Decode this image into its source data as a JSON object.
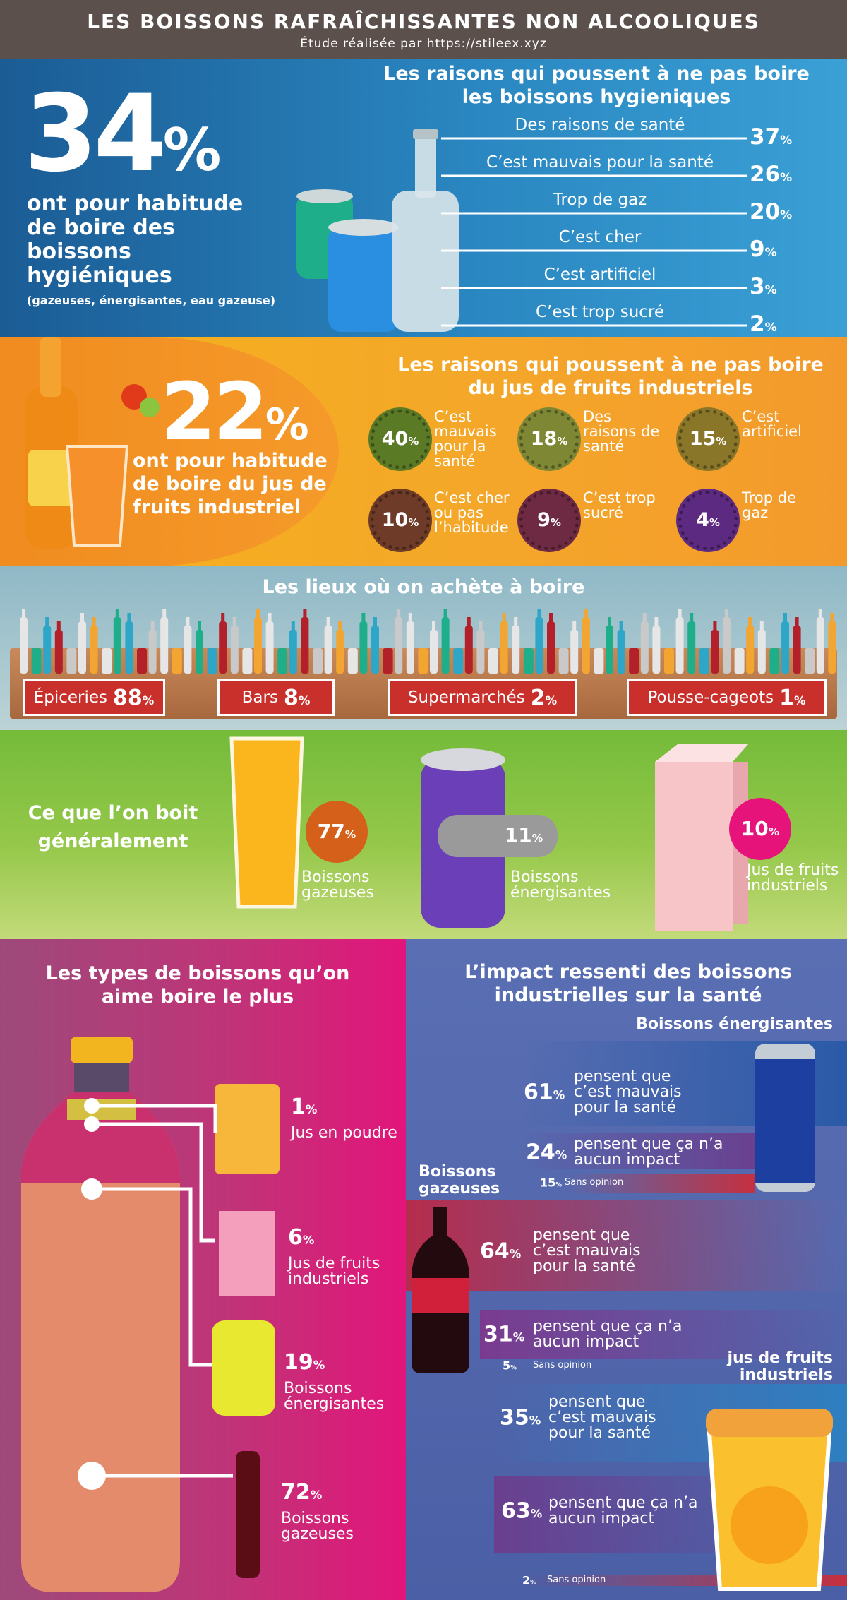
{
  "header": {
    "title": "LES BOISSONS RAFRAÎCHISSANTES NON ALCOOLIQUES",
    "subtitle": "Étude réalisée par https://stileex.xyz"
  },
  "unit": "%",
  "hygienic": {
    "value": 34,
    "text": "ont pour habitude de boire des boissons hygiéniques",
    "note": "(gazeuses, énergisantes, eau gazeuse)",
    "reasons_title": "Les raisons qui poussent à ne pas boire les boissons hygieniques",
    "reasons": [
      {
        "label": "Des raisons de santé",
        "value": 37
      },
      {
        "label": "C’est mauvais pour la santé",
        "value": 26
      },
      {
        "label": "Trop de gaz",
        "value": 20
      },
      {
        "label": "C’est cher",
        "value": 9
      },
      {
        "label": "C’est artificiel",
        "value": 3
      },
      {
        "label": "C’est trop sucré",
        "value": 2
      }
    ]
  },
  "juice": {
    "value": 22,
    "text": "ont pour habitude de boire du jus de fruits industriel",
    "reasons_title": "Les raisons qui poussent à ne pas boire du jus de fruits industriels",
    "reasons": [
      {
        "value": 40,
        "label": "C’est mauvais pour la santé"
      },
      {
        "value": 18,
        "label": "Des raisons de santé"
      },
      {
        "value": 15,
        "label": "C’est artificiel"
      },
      {
        "value": 10,
        "label": "C’est cher ou pas l’habitude"
      },
      {
        "value": 9,
        "label": "C’est trop sucré"
      },
      {
        "value": 4,
        "label": "Trop de gaz"
      }
    ]
  },
  "places": {
    "title": "Les lieux où on achète à boire",
    "items": [
      {
        "label": "Épiceries",
        "value": 88
      },
      {
        "label": "Bars",
        "value": 8
      },
      {
        "label": "Supermarchés",
        "value": 2
      },
      {
        "label": "Pousse-cageots",
        "value": 1
      }
    ]
  },
  "drinks": {
    "title": "Ce que l’on boit généralement",
    "items": [
      {
        "value": 77,
        "label": "Boissons gazeuses"
      },
      {
        "value": 11,
        "label": "Boissons énergisantes"
      },
      {
        "value": 10,
        "label": "Jus de fruits industriels"
      }
    ]
  },
  "types": {
    "title": "Les types de boissons qu’on aime boire le plus",
    "items": [
      {
        "value": 1,
        "label": "Jus en poudre"
      },
      {
        "value": 6,
        "label": "Jus de fruits industriels"
      },
      {
        "value": 19,
        "label": "Boissons énergisantes"
      },
      {
        "value": 72,
        "label": "Boissons gazeuses"
      }
    ]
  },
  "impact": {
    "title": "L’impact ressenti des boissons industrielles sur la santé",
    "groups": [
      {
        "name": "Boissons énergisantes",
        "rows": [
          {
            "value": 61,
            "label": "pensent que c’est mauvais pour la santé"
          },
          {
            "value": 24,
            "label": "pensent que ça n’a aucun impact"
          },
          {
            "value": 15,
            "label": "Sans opinion"
          }
        ]
      },
      {
        "name": "Boissons gazeuses",
        "rows": [
          {
            "value": 64,
            "label": "pensent que c’est mauvais pour la santé"
          },
          {
            "value": 31,
            "label": "pensent que ça n’a aucun impact"
          },
          {
            "value": 5,
            "label": "Sans opinion"
          }
        ]
      },
      {
        "name": "jus de fruits industriels",
        "rows": [
          {
            "value": 35,
            "label": "pensent que c’est mauvais pour la santé"
          },
          {
            "value": 63,
            "label": "pensent que ça n’a aucun impact"
          },
          {
            "value": 2,
            "label": "Sans opinion"
          }
        ]
      }
    ]
  }
}
